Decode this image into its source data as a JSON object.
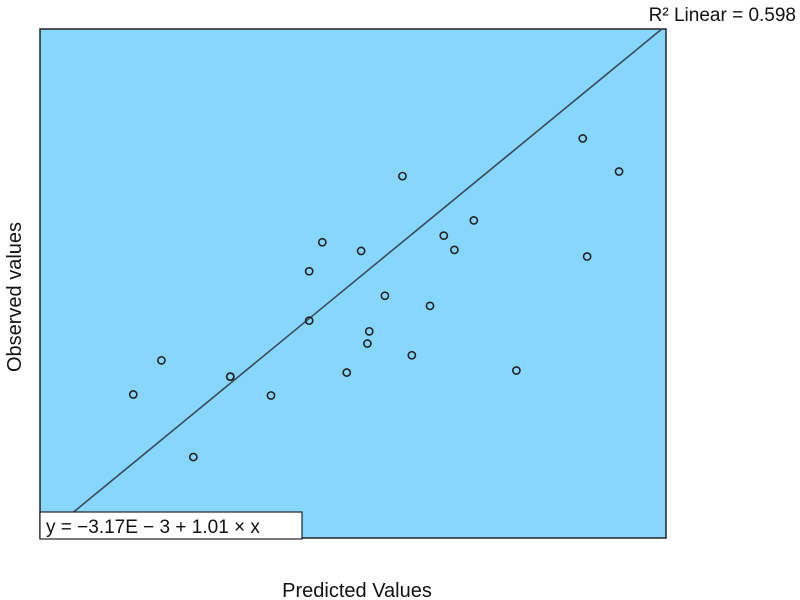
{
  "colors": {
    "plot_background": "#87d6fd",
    "plot_border": "#222222",
    "fit_line": "#3a4a5a",
    "marker_stroke": "#222222",
    "equation_box_fill": "#ffffff"
  },
  "chart_data": {
    "type": "scatter",
    "title": "",
    "xlabel": "Predicted Values",
    "ylabel": "Observed values",
    "xlim": [
      0,
      1
    ],
    "ylim": [
      0,
      1
    ],
    "grid": false,
    "legend": "none",
    "ticks_visible": false,
    "marker": "open-circle",
    "r2_label": "R² Linear = 0.598",
    "fit": {
      "label": "y = −3.17E − 3 + 1.01 × x",
      "intercept": -0.00317,
      "slope": 1.01
    },
    "points": [
      {
        "x": 0.149,
        "y": 0.282
      },
      {
        "x": 0.194,
        "y": 0.349
      },
      {
        "x": 0.245,
        "y": 0.159
      },
      {
        "x": 0.304,
        "y": 0.317
      },
      {
        "x": 0.304,
        "y": 0.317
      },
      {
        "x": 0.369,
        "y": 0.28
      },
      {
        "x": 0.43,
        "y": 0.427
      },
      {
        "x": 0.43,
        "y": 0.524
      },
      {
        "x": 0.451,
        "y": 0.581
      },
      {
        "x": 0.49,
        "y": 0.325
      },
      {
        "x": 0.523,
        "y": 0.382
      },
      {
        "x": 0.513,
        "y": 0.564
      },
      {
        "x": 0.526,
        "y": 0.406
      },
      {
        "x": 0.551,
        "y": 0.476
      },
      {
        "x": 0.579,
        "y": 0.711
      },
      {
        "x": 0.594,
        "y": 0.359
      },
      {
        "x": 0.623,
        "y": 0.456
      },
      {
        "x": 0.645,
        "y": 0.594
      },
      {
        "x": 0.662,
        "y": 0.566
      },
      {
        "x": 0.693,
        "y": 0.624
      },
      {
        "x": 0.761,
        "y": 0.329
      },
      {
        "x": 0.867,
        "y": 0.785
      },
      {
        "x": 0.874,
        "y": 0.553
      },
      {
        "x": 0.925,
        "y": 0.72
      }
    ]
  }
}
